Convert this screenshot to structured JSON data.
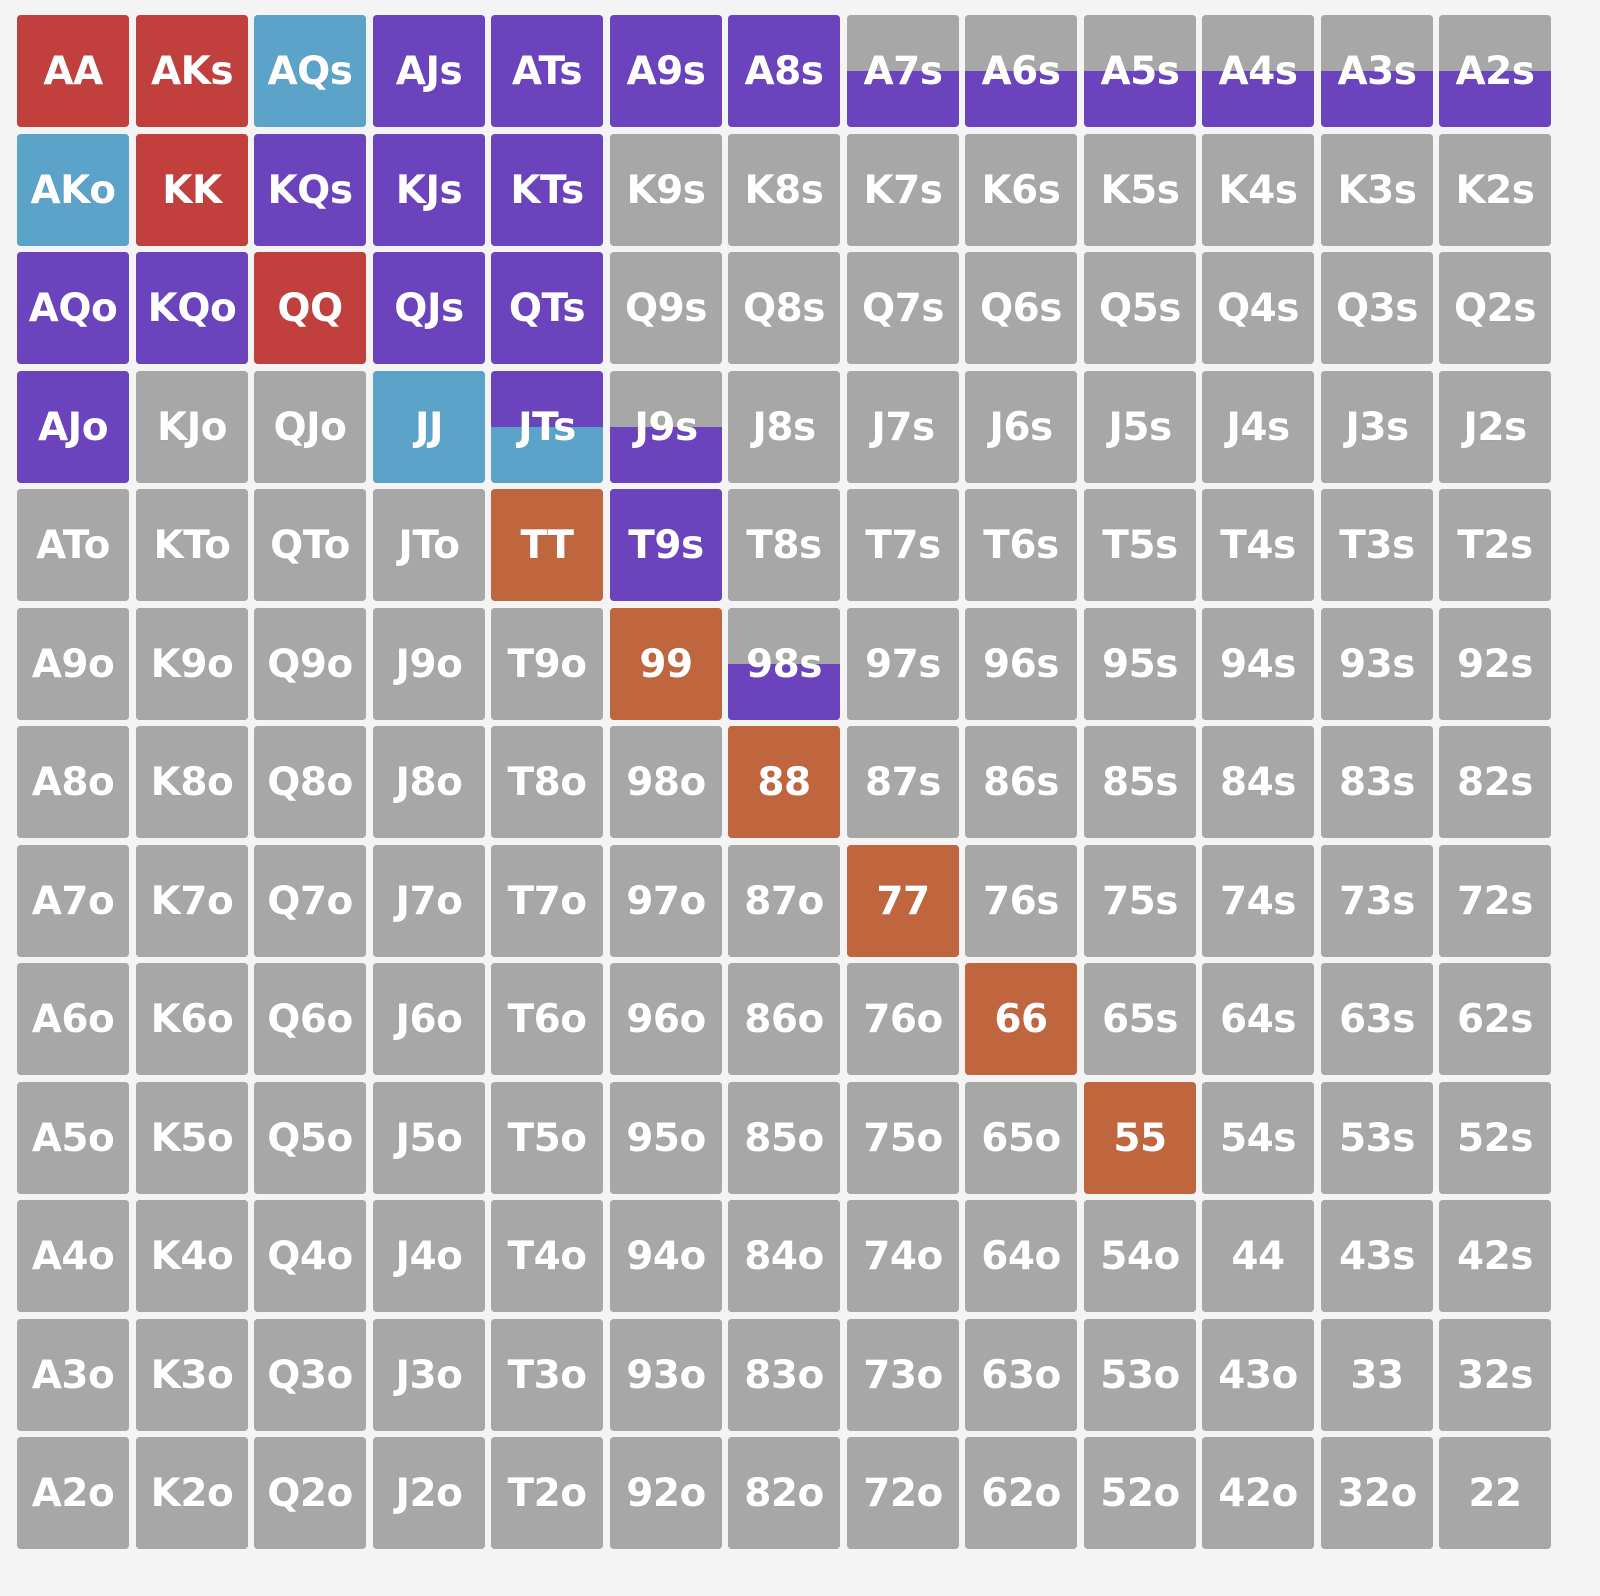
{
  "colors": {
    "fold": "#a7a7a7",
    "raise": "#c1403e",
    "call": "#5ba3c9",
    "mixed": "#6a43bd",
    "allin": "#c0663f"
  },
  "grid": {
    "rows": [
      [
        "AA",
        "AKs",
        "AQs",
        "AJs",
        "ATs",
        "A9s",
        "A8s",
        "A7s",
        "A6s",
        "A5s",
        "A4s",
        "A3s",
        "A2s"
      ],
      [
        "AKo",
        "KK",
        "KQs",
        "KJs",
        "KTs",
        "K9s",
        "K8s",
        "K7s",
        "K6s",
        "K5s",
        "K4s",
        "K3s",
        "K2s"
      ],
      [
        "AQo",
        "KQo",
        "QQ",
        "QJs",
        "QTs",
        "Q9s",
        "Q8s",
        "Q7s",
        "Q6s",
        "Q5s",
        "Q4s",
        "Q3s",
        "Q2s"
      ],
      [
        "AJo",
        "KJo",
        "QJo",
        "JJ",
        "JTs",
        "J9s",
        "J8s",
        "J7s",
        "J6s",
        "J5s",
        "J4s",
        "J3s",
        "J2s"
      ],
      [
        "ATo",
        "KTo",
        "QTo",
        "JTo",
        "TT",
        "T9s",
        "T8s",
        "T7s",
        "T6s",
        "T5s",
        "T4s",
        "T3s",
        "T2s"
      ],
      [
        "A9o",
        "K9o",
        "Q9o",
        "J9o",
        "T9o",
        "99",
        "98s",
        "97s",
        "96s",
        "95s",
        "94s",
        "93s",
        "92s"
      ],
      [
        "A8o",
        "K8o",
        "Q8o",
        "J8o",
        "T8o",
        "98o",
        "88",
        "87s",
        "86s",
        "85s",
        "84s",
        "83s",
        "82s"
      ],
      [
        "A7o",
        "K7o",
        "Q7o",
        "J7o",
        "T7o",
        "97o",
        "87o",
        "77",
        "76s",
        "75s",
        "74s",
        "73s",
        "72s"
      ],
      [
        "A6o",
        "K6o",
        "Q6o",
        "J6o",
        "T6o",
        "96o",
        "86o",
        "76o",
        "66",
        "65s",
        "64s",
        "63s",
        "62s"
      ],
      [
        "A5o",
        "K5o",
        "Q5o",
        "J5o",
        "T5o",
        "95o",
        "85o",
        "75o",
        "65o",
        "55",
        "54s",
        "53s",
        "52s"
      ],
      [
        "A4o",
        "K4o",
        "Q4o",
        "J4o",
        "T4o",
        "94o",
        "84o",
        "74o",
        "64o",
        "54o",
        "44",
        "43s",
        "42s"
      ],
      [
        "A3o",
        "K3o",
        "Q3o",
        "J3o",
        "T3o",
        "93o",
        "83o",
        "73o",
        "63o",
        "53o",
        "43o",
        "33",
        "32s"
      ],
      [
        "A2o",
        "K2o",
        "Q2o",
        "J2o",
        "T2o",
        "92o",
        "82o",
        "72o",
        "62o",
        "52o",
        "42o",
        "32o",
        "22"
      ]
    ],
    "actions": {
      "AA": [
        {
          "a": "raise",
          "f": 1
        }
      ],
      "KK": [
        {
          "a": "raise",
          "f": 1
        }
      ],
      "QQ": [
        {
          "a": "raise",
          "f": 1
        }
      ],
      "AKs": [
        {
          "a": "raise",
          "f": 1
        }
      ],
      "AQs": [
        {
          "a": "call",
          "f": 1
        }
      ],
      "AKo": [
        {
          "a": "call",
          "f": 1
        }
      ],
      "JJ": [
        {
          "a": "call",
          "f": 1
        }
      ],
      "AJs": [
        {
          "a": "mixed",
          "f": 1
        }
      ],
      "ATs": [
        {
          "a": "mixed",
          "f": 1
        }
      ],
      "A9s": [
        {
          "a": "mixed",
          "f": 1
        }
      ],
      "A8s": [
        {
          "a": "mixed",
          "f": 1
        }
      ],
      "A7s": [
        {
          "a": "fold",
          "f": 0.5
        },
        {
          "a": "mixed",
          "f": 0.5
        }
      ],
      "A6s": [
        {
          "a": "fold",
          "f": 0.5
        },
        {
          "a": "mixed",
          "f": 0.5
        }
      ],
      "A5s": [
        {
          "a": "fold",
          "f": 0.5
        },
        {
          "a": "mixed",
          "f": 0.5
        }
      ],
      "A4s": [
        {
          "a": "fold",
          "f": 0.5
        },
        {
          "a": "mixed",
          "f": 0.5
        }
      ],
      "A3s": [
        {
          "a": "fold",
          "f": 0.5
        },
        {
          "a": "mixed",
          "f": 0.5
        }
      ],
      "A2s": [
        {
          "a": "fold",
          "f": 0.5
        },
        {
          "a": "mixed",
          "f": 0.5
        }
      ],
      "KQs": [
        {
          "a": "mixed",
          "f": 1
        }
      ],
      "KJs": [
        {
          "a": "mixed",
          "f": 1
        }
      ],
      "KTs": [
        {
          "a": "mixed",
          "f": 1
        }
      ],
      "AQo": [
        {
          "a": "mixed",
          "f": 1
        }
      ],
      "KQo": [
        {
          "a": "mixed",
          "f": 1
        }
      ],
      "QJs": [
        {
          "a": "mixed",
          "f": 1
        }
      ],
      "QTs": [
        {
          "a": "mixed",
          "f": 1
        }
      ],
      "AJo": [
        {
          "a": "mixed",
          "f": 1
        }
      ],
      "JTs": [
        {
          "a": "mixed",
          "f": 0.5
        },
        {
          "a": "call",
          "f": 0.5
        }
      ],
      "J9s": [
        {
          "a": "fold",
          "f": 0.5
        },
        {
          "a": "mixed",
          "f": 0.5
        }
      ],
      "T9s": [
        {
          "a": "mixed",
          "f": 1
        }
      ],
      "98s": [
        {
          "a": "fold",
          "f": 0.5
        },
        {
          "a": "mixed",
          "f": 0.5
        }
      ],
      "TT": [
        {
          "a": "allin",
          "f": 1
        }
      ],
      "99": [
        {
          "a": "allin",
          "f": 1
        }
      ],
      "88": [
        {
          "a": "allin",
          "f": 1
        }
      ],
      "77": [
        {
          "a": "allin",
          "f": 1
        }
      ],
      "66": [
        {
          "a": "allin",
          "f": 1
        }
      ],
      "55": [
        {
          "a": "allin",
          "f": 1
        }
      ]
    }
  }
}
